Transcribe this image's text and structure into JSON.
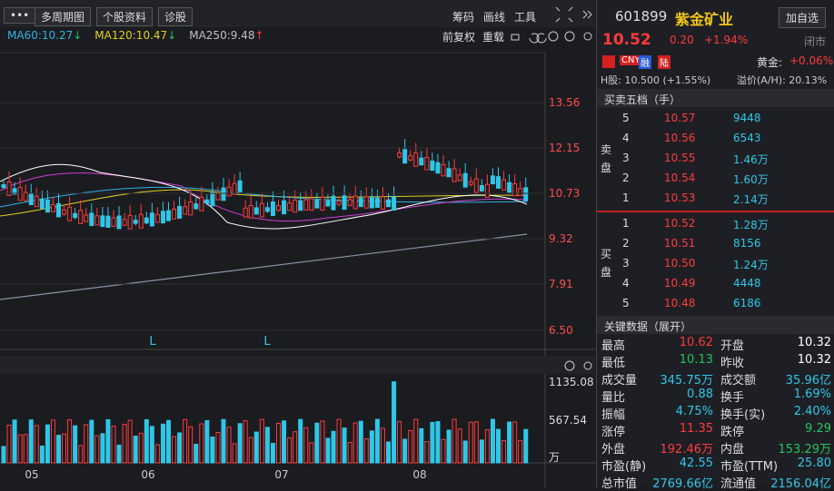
{
  "toolbar": {
    "buttons": [
      "多周期图",
      "个股资料",
      "诊股"
    ],
    "tools": [
      "筹码",
      "画线",
      "工具"
    ]
  },
  "ma_legend": [
    {
      "label": "MA60:10.27",
      "arrow": "↓",
      "color": "#2fb3e6",
      "arrow_color": "#22c55e"
    },
    {
      "label": "MA120:10.47",
      "arrow": "↓",
      "color": "#e0d020",
      "arrow_color": "#22c55e"
    },
    {
      "label": "MA250:9.48",
      "arrow": "↑",
      "color": "#c0c0c0",
      "arrow_color": "#ff3b3b"
    }
  ],
  "chart_options": [
    "前复权",
    "重载"
  ],
  "price_axis": [
    "13.56",
    "12.15",
    "10.73",
    "9.32",
    "7.91",
    "6.50"
  ],
  "volume_axis": [
    "1135.08",
    "567.54",
    "万"
  ],
  "x_labels": [
    "05",
    "06",
    "07",
    "08"
  ],
  "markers": [
    "L",
    "L"
  ],
  "stock": {
    "code": "601899",
    "name": "紫金矿业",
    "add_button": "加自选",
    "price": "10.52",
    "change": "0.20",
    "change_pct": "+1.94%",
    "status": "闭市",
    "badges": [
      "CNY",
      "融",
      "陆"
    ],
    "gold_label": "黄金:",
    "gold_change": "+0.06%",
    "h_share": "H股: 10.500 (+1.55%)",
    "premium": "溢价(A/H): 20.13%"
  },
  "order_book": {
    "title": "买卖五档（手）",
    "sell_label": "卖盘",
    "buy_label": "买盘",
    "sell": [
      [
        "5",
        "10.57",
        "9448"
      ],
      [
        "4",
        "10.56",
        "6543"
      ],
      [
        "3",
        "10.55",
        "1.46万"
      ],
      [
        "2",
        "10.54",
        "1.60万"
      ],
      [
        "1",
        "10.53",
        "2.14万"
      ]
    ],
    "buy": [
      [
        "1",
        "10.52",
        "1.28万"
      ],
      [
        "2",
        "10.51",
        "8156"
      ],
      [
        "3",
        "10.50",
        "1.24万"
      ],
      [
        "4",
        "10.49",
        "4448"
      ],
      [
        "5",
        "10.48",
        "6186"
      ]
    ]
  },
  "key_data": {
    "title": "关键数据（展开）",
    "rows": [
      [
        {
          "label": "最高",
          "value": "10.62",
          "color": "#ff3b3b"
        },
        {
          "label": "开盘",
          "value": "10.32",
          "color": "#ffffff"
        }
      ],
      [
        {
          "label": "最低",
          "value": "10.13",
          "color": "#22c55e"
        },
        {
          "label": "昨收",
          "value": "10.32",
          "color": "#ffffff"
        }
      ],
      [
        {
          "label": "成交量",
          "value": "345.75万",
          "color": "#2fc7e8"
        },
        {
          "label": "成交额",
          "value": "35.96亿",
          "color": "#2fc7e8"
        }
      ],
      [
        {
          "label": "量比",
          "value": "0.88",
          "color": "#2fc7e8"
        },
        {
          "label": "换手",
          "value": "1.69%",
          "color": "#2fc7e8"
        }
      ],
      [
        {
          "label": "振幅",
          "value": "4.75%",
          "color": "#2fc7e8"
        },
        {
          "label": "换手(实)",
          "value": "2.40%",
          "color": "#2fc7e8"
        }
      ],
      [
        {
          "label": "涨停",
          "value": "11.35",
          "color": "#ff3b3b"
        },
        {
          "label": "跌停",
          "value": "9.29",
          "color": "#22c55e"
        }
      ],
      [
        {
          "label": "外盘",
          "value": "192.46万",
          "color": "#ff3b3b"
        },
        {
          "label": "内盘",
          "value": "153.29万",
          "color": "#22c55e"
        }
      ],
      [
        {
          "label": "市盈(静)",
          "value": "42.55",
          "color": "#2fc7e8"
        },
        {
          "label": "市盈(TTM)",
          "value": "25.80",
          "color": "#2fc7e8"
        }
      ],
      [
        {
          "label": "总市值",
          "value": "2769.66亿",
          "color": "#2fc7e8"
        },
        {
          "label": "流通值",
          "value": "2156.04亿",
          "color": "#2fc7e8"
        }
      ]
    ]
  }
}
